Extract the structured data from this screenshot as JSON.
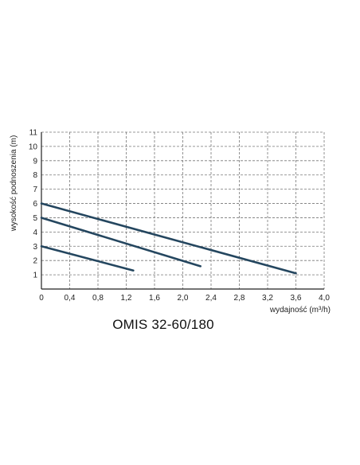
{
  "chart_data": {
    "type": "line",
    "title": "OMIS 32-60/180",
    "xlabel": "wydajność (m³/h)",
    "ylabel": "wysokość podnoszenia (m)",
    "xlim": [
      0,
      4.0
    ],
    "ylim": [
      0,
      11
    ],
    "xticks": [
      "0",
      "0,4",
      "0,8",
      "1,2",
      "1,6",
      "2,0",
      "2,4",
      "2,8",
      "3,2",
      "3,6",
      "4,0"
    ],
    "yticks": [
      "1",
      "2",
      "3",
      "4",
      "5",
      "6",
      "7",
      "8",
      "9",
      "10",
      "11"
    ],
    "grid": true,
    "legend": "none",
    "series": [
      {
        "x": [
          0,
          3.6
        ],
        "y": [
          6.0,
          1.1
        ]
      },
      {
        "x": [
          0,
          2.25
        ],
        "y": [
          5.0,
          1.6
        ]
      },
      {
        "x": [
          0,
          1.3
        ],
        "y": [
          3.0,
          1.3
        ]
      }
    ],
    "colors": {
      "line": "#24465f",
      "grid": "#777777",
      "axis": "#222222"
    }
  }
}
